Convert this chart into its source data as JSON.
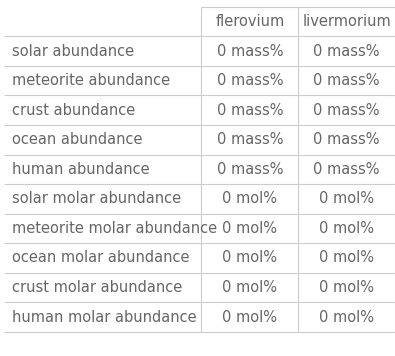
{
  "col_headers": [
    "",
    "flerovium",
    "livermorium"
  ],
  "rows": [
    [
      "solar abundance",
      "0 mass%",
      "0 mass%"
    ],
    [
      "meteorite abundance",
      "0 mass%",
      "0 mass%"
    ],
    [
      "crust abundance",
      "0 mass%",
      "0 mass%"
    ],
    [
      "ocean abundance",
      "0 mass%",
      "0 mass%"
    ],
    [
      "human abundance",
      "0 mass%",
      "0 mass%"
    ],
    [
      "solar molar abundance",
      "0 mol%",
      "0 mol%"
    ],
    [
      "meteorite molar abundance",
      "0 mol%",
      "0 mol%"
    ],
    [
      "ocean molar abundance",
      "0 mol%",
      "0 mol%"
    ],
    [
      "crust molar abundance",
      "0 mol%",
      "0 mol%"
    ],
    [
      "human molar abundance",
      "0 mol%",
      "0 mol%"
    ]
  ],
  "background_color": "#ffffff",
  "text_color": "#666666",
  "grid_color": "#cccccc",
  "font_size": 10.5,
  "fig_width": 3.95,
  "fig_height": 3.56,
  "dpi": 100
}
